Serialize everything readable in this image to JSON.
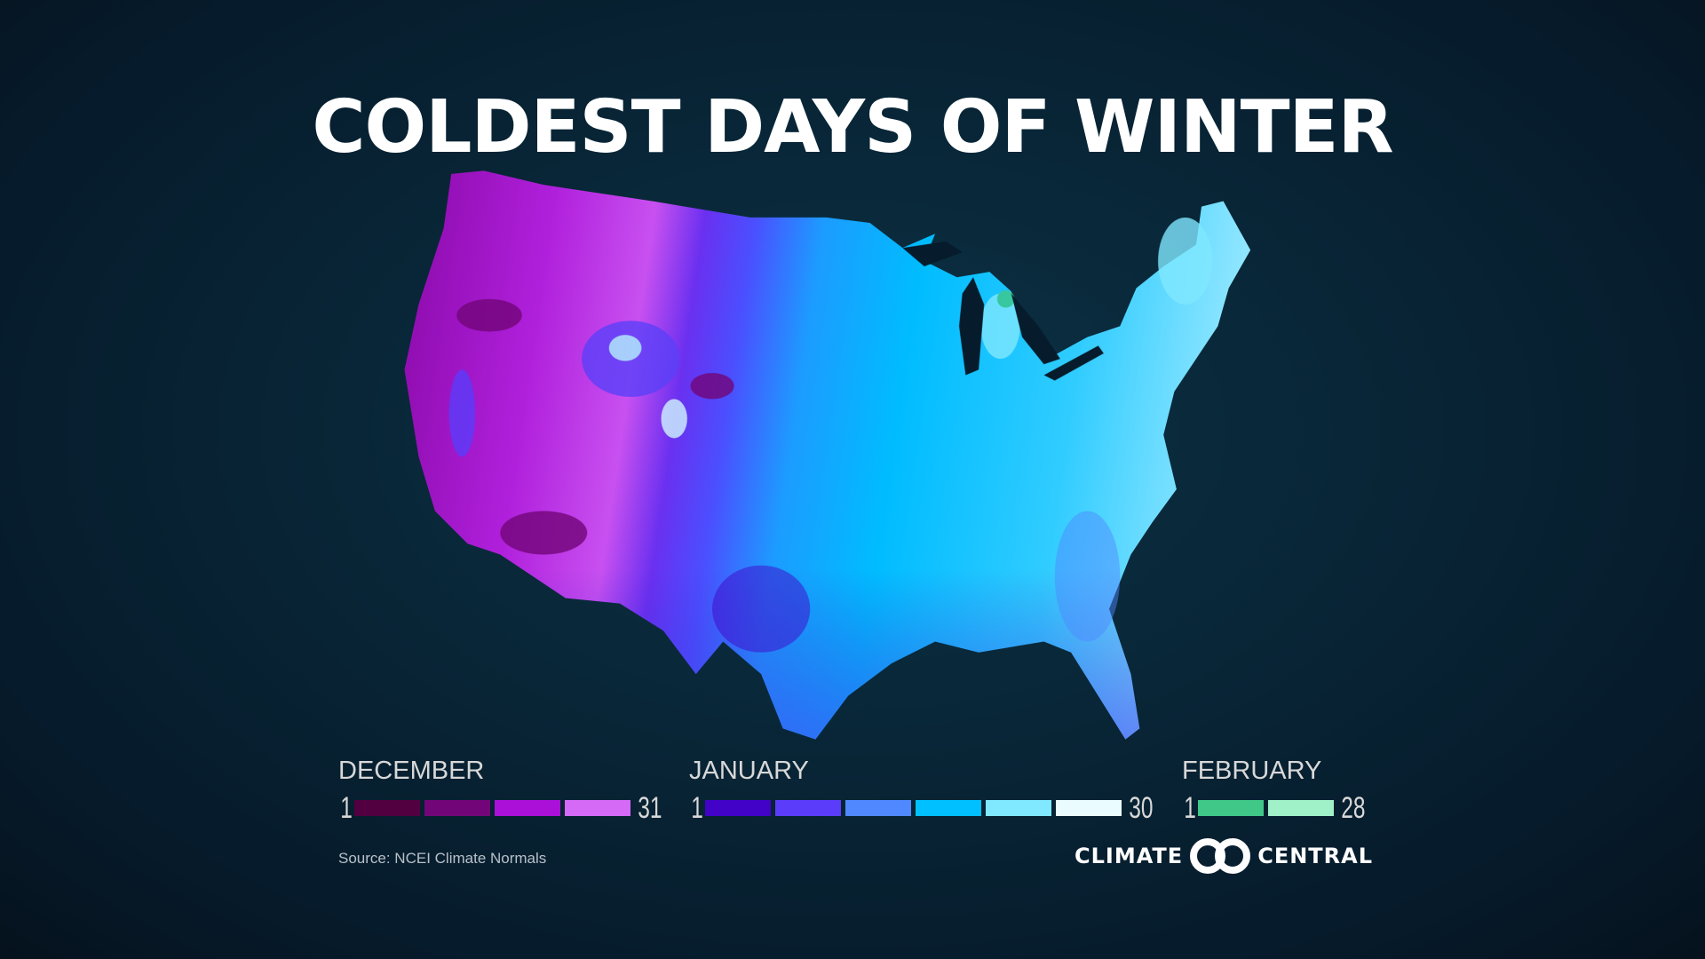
{
  "title": "COLDEST DAYS OF WINTER",
  "legend": [
    {
      "month": "DECEMBER",
      "start": "1",
      "end": "31",
      "colors": [
        "#520040",
        "#720678",
        "#ab10d8",
        "#d46af6"
      ]
    },
    {
      "month": "JANUARY",
      "start": "1",
      "end": "30",
      "colors": [
        "#4202c8",
        "#5a3cfa",
        "#5088ff",
        "#00c0ff",
        "#80e8ff",
        "#eafcff"
      ]
    },
    {
      "month": "FEBRUARY",
      "start": "1",
      "end": "28",
      "colors": [
        "#40c888",
        "#a0f0c8"
      ]
    }
  ],
  "source": "Source: NCEI Climate Normals",
  "logo": {
    "left": "CLIMATE",
    "right": "CENTRAL"
  }
}
